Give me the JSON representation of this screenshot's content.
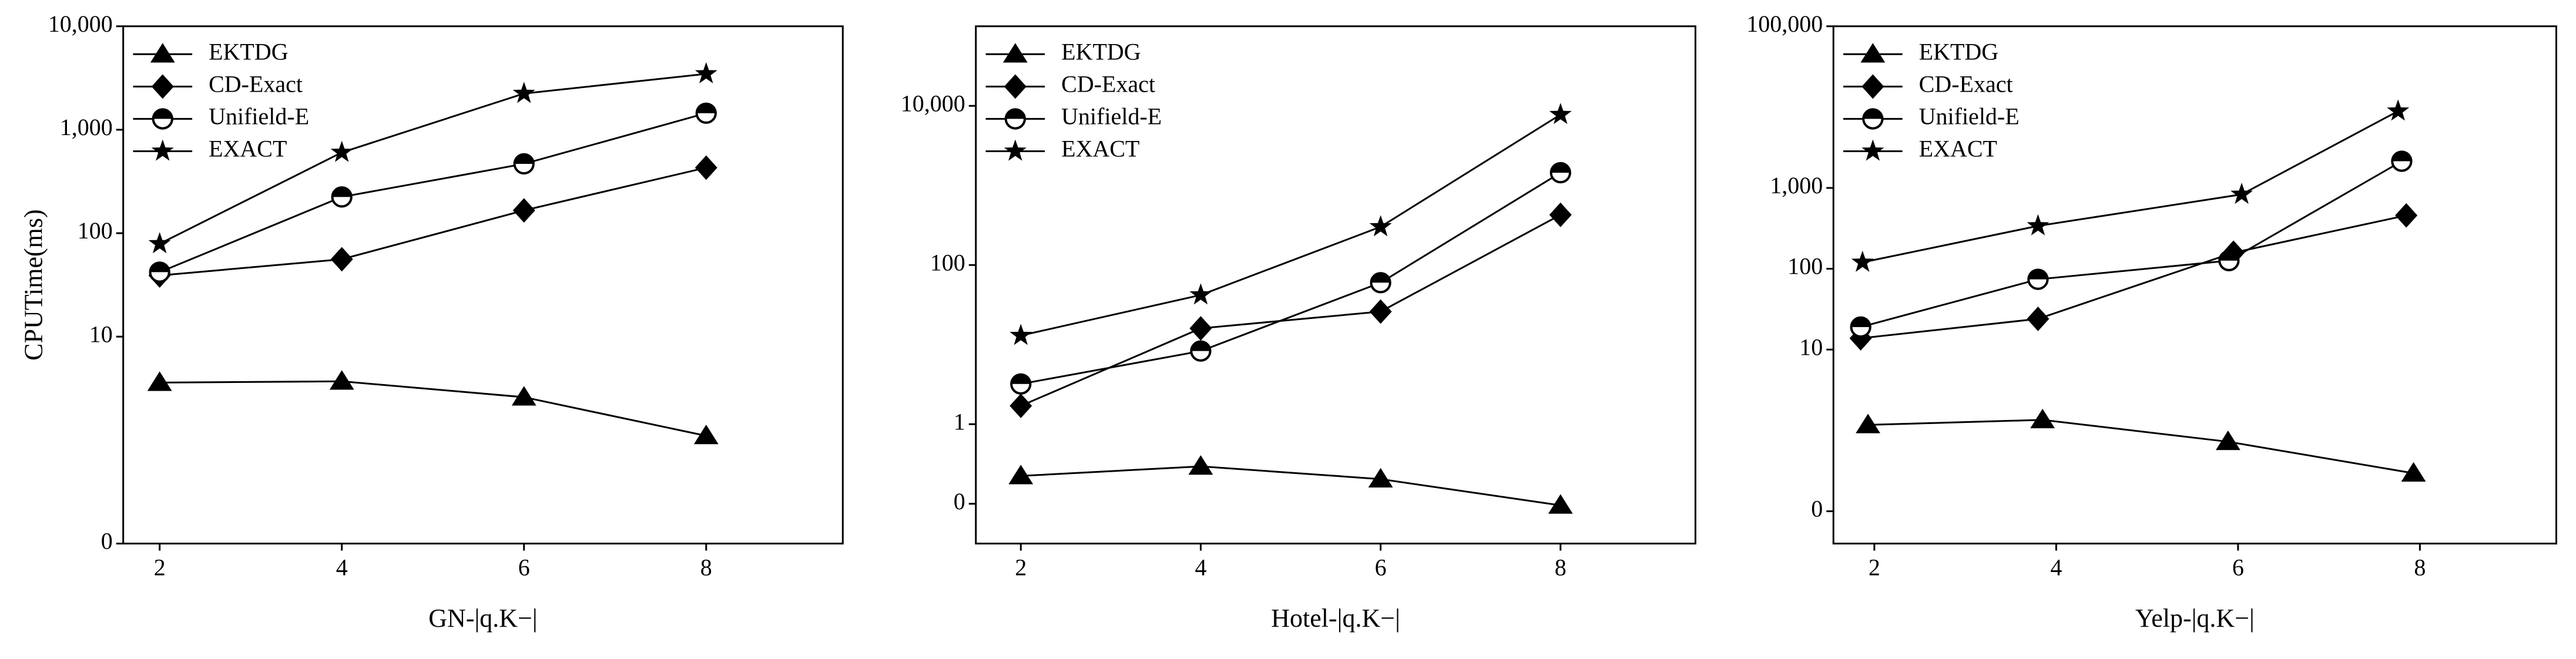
{
  "chart_data": [
    {
      "type": "line",
      "x_label": "GN-|q.K−|",
      "y_label": "CPUTime(ms)",
      "yscale": "symlog",
      "x": [
        2,
        4,
        6,
        8
      ],
      "xlim": [
        1.6,
        9.5
      ],
      "xticks": [
        2,
        4,
        6,
        8
      ],
      "ylim": [
        0,
        10000
      ],
      "yticks": [
        0,
        10,
        100,
        {
          "value": 1000,
          "label": "1,000"
        },
        {
          "value": 10000,
          "label": "10,000"
        }
      ],
      "legend": "upper left",
      "series": [
        {
          "name": "EKTDG",
          "marker": "triangle",
          "color": "#000000",
          "values": [
            3.6,
            3.7,
            2.6,
            1.1
          ]
        },
        {
          "name": "CD-Exact",
          "marker": "diamond",
          "color": "#000000",
          "values": [
            39,
            56,
            166,
            430
          ]
        },
        {
          "name": "Unifield-E",
          "marker": "half-circle",
          "color": "#000000",
          "values": [
            42,
            224,
            468,
            1445
          ]
        },
        {
          "name": "EXACT",
          "marker": "star",
          "color": "#000000",
          "values": [
            79,
            603,
            2239,
            3467
          ]
        }
      ]
    },
    {
      "type": "line",
      "x_label": "Hotel-|q.K−|",
      "yscale": "symlog",
      "x": [
        2,
        4,
        6,
        8
      ],
      "xlim": [
        1.5,
        9.5
      ],
      "xticks": [
        2,
        4,
        6,
        8
      ],
      "ylim": [
        -0.5,
        100000
      ],
      "yticks": [
        0,
        1,
        100,
        {
          "value": 10000,
          "label": "10,000"
        }
      ],
      "legend": "upper left",
      "series": [
        {
          "name": "EKTDG",
          "marker": "triangle",
          "color": "#000000",
          "values": [
            0.35,
            0.47,
            0.31,
            -0.02
          ]
        },
        {
          "name": "CD-Exact",
          "marker": "diamond",
          "color": "#000000",
          "values": [
            1.7,
            16,
            26,
            427
          ]
        },
        {
          "name": "Unifield-E",
          "marker": "half-circle",
          "color": "#000000",
          "values": [
            3.2,
            8.3,
            60,
            1445
          ]
        },
        {
          "name": "EXACT",
          "marker": "star",
          "color": "#000000",
          "values": [
            13,
            42,
            302,
            7762
          ]
        }
      ]
    },
    {
      "type": "line",
      "x_label": "Yelp-|q.K−|",
      "yscale": "symlog",
      "xlim": [
        1.55,
        9.5
      ],
      "xticks": [
        2,
        4,
        6,
        8
      ],
      "ylim": [
        -0.4,
        100000
      ],
      "yticks": [
        0,
        10,
        100,
        {
          "value": 1000,
          "label": "1,000"
        },
        {
          "value": 100000,
          "label": "100,000"
        }
      ],
      "legend": "upper left",
      "series": [
        {
          "name": "EKTDG",
          "marker": "triangle",
          "color": "#000000",
          "x": [
            1.93,
            3.85,
            5.89,
            7.93
          ],
          "values": [
            1.17,
            1.35,
            0.86,
            0.47
          ]
        },
        {
          "name": "CD-Exact",
          "marker": "diamond",
          "color": "#000000",
          "x": [
            1.85,
            3.8,
            5.95,
            7.85
          ],
          "values": [
            13.8,
            24,
            158,
            457
          ]
        },
        {
          "name": "Unifield-E",
          "marker": "half-circle",
          "color": "#000000",
          "x": [
            1.85,
            3.8,
            5.9,
            7.8
          ],
          "values": [
            19,
            74,
            126,
            2138
          ]
        },
        {
          "name": "EXACT",
          "marker": "star",
          "color": "#000000",
          "x": [
            1.87,
            3.8,
            6.04,
            7.76
          ],
          "values": [
            120,
            339,
            832,
            8913
          ]
        }
      ]
    }
  ]
}
